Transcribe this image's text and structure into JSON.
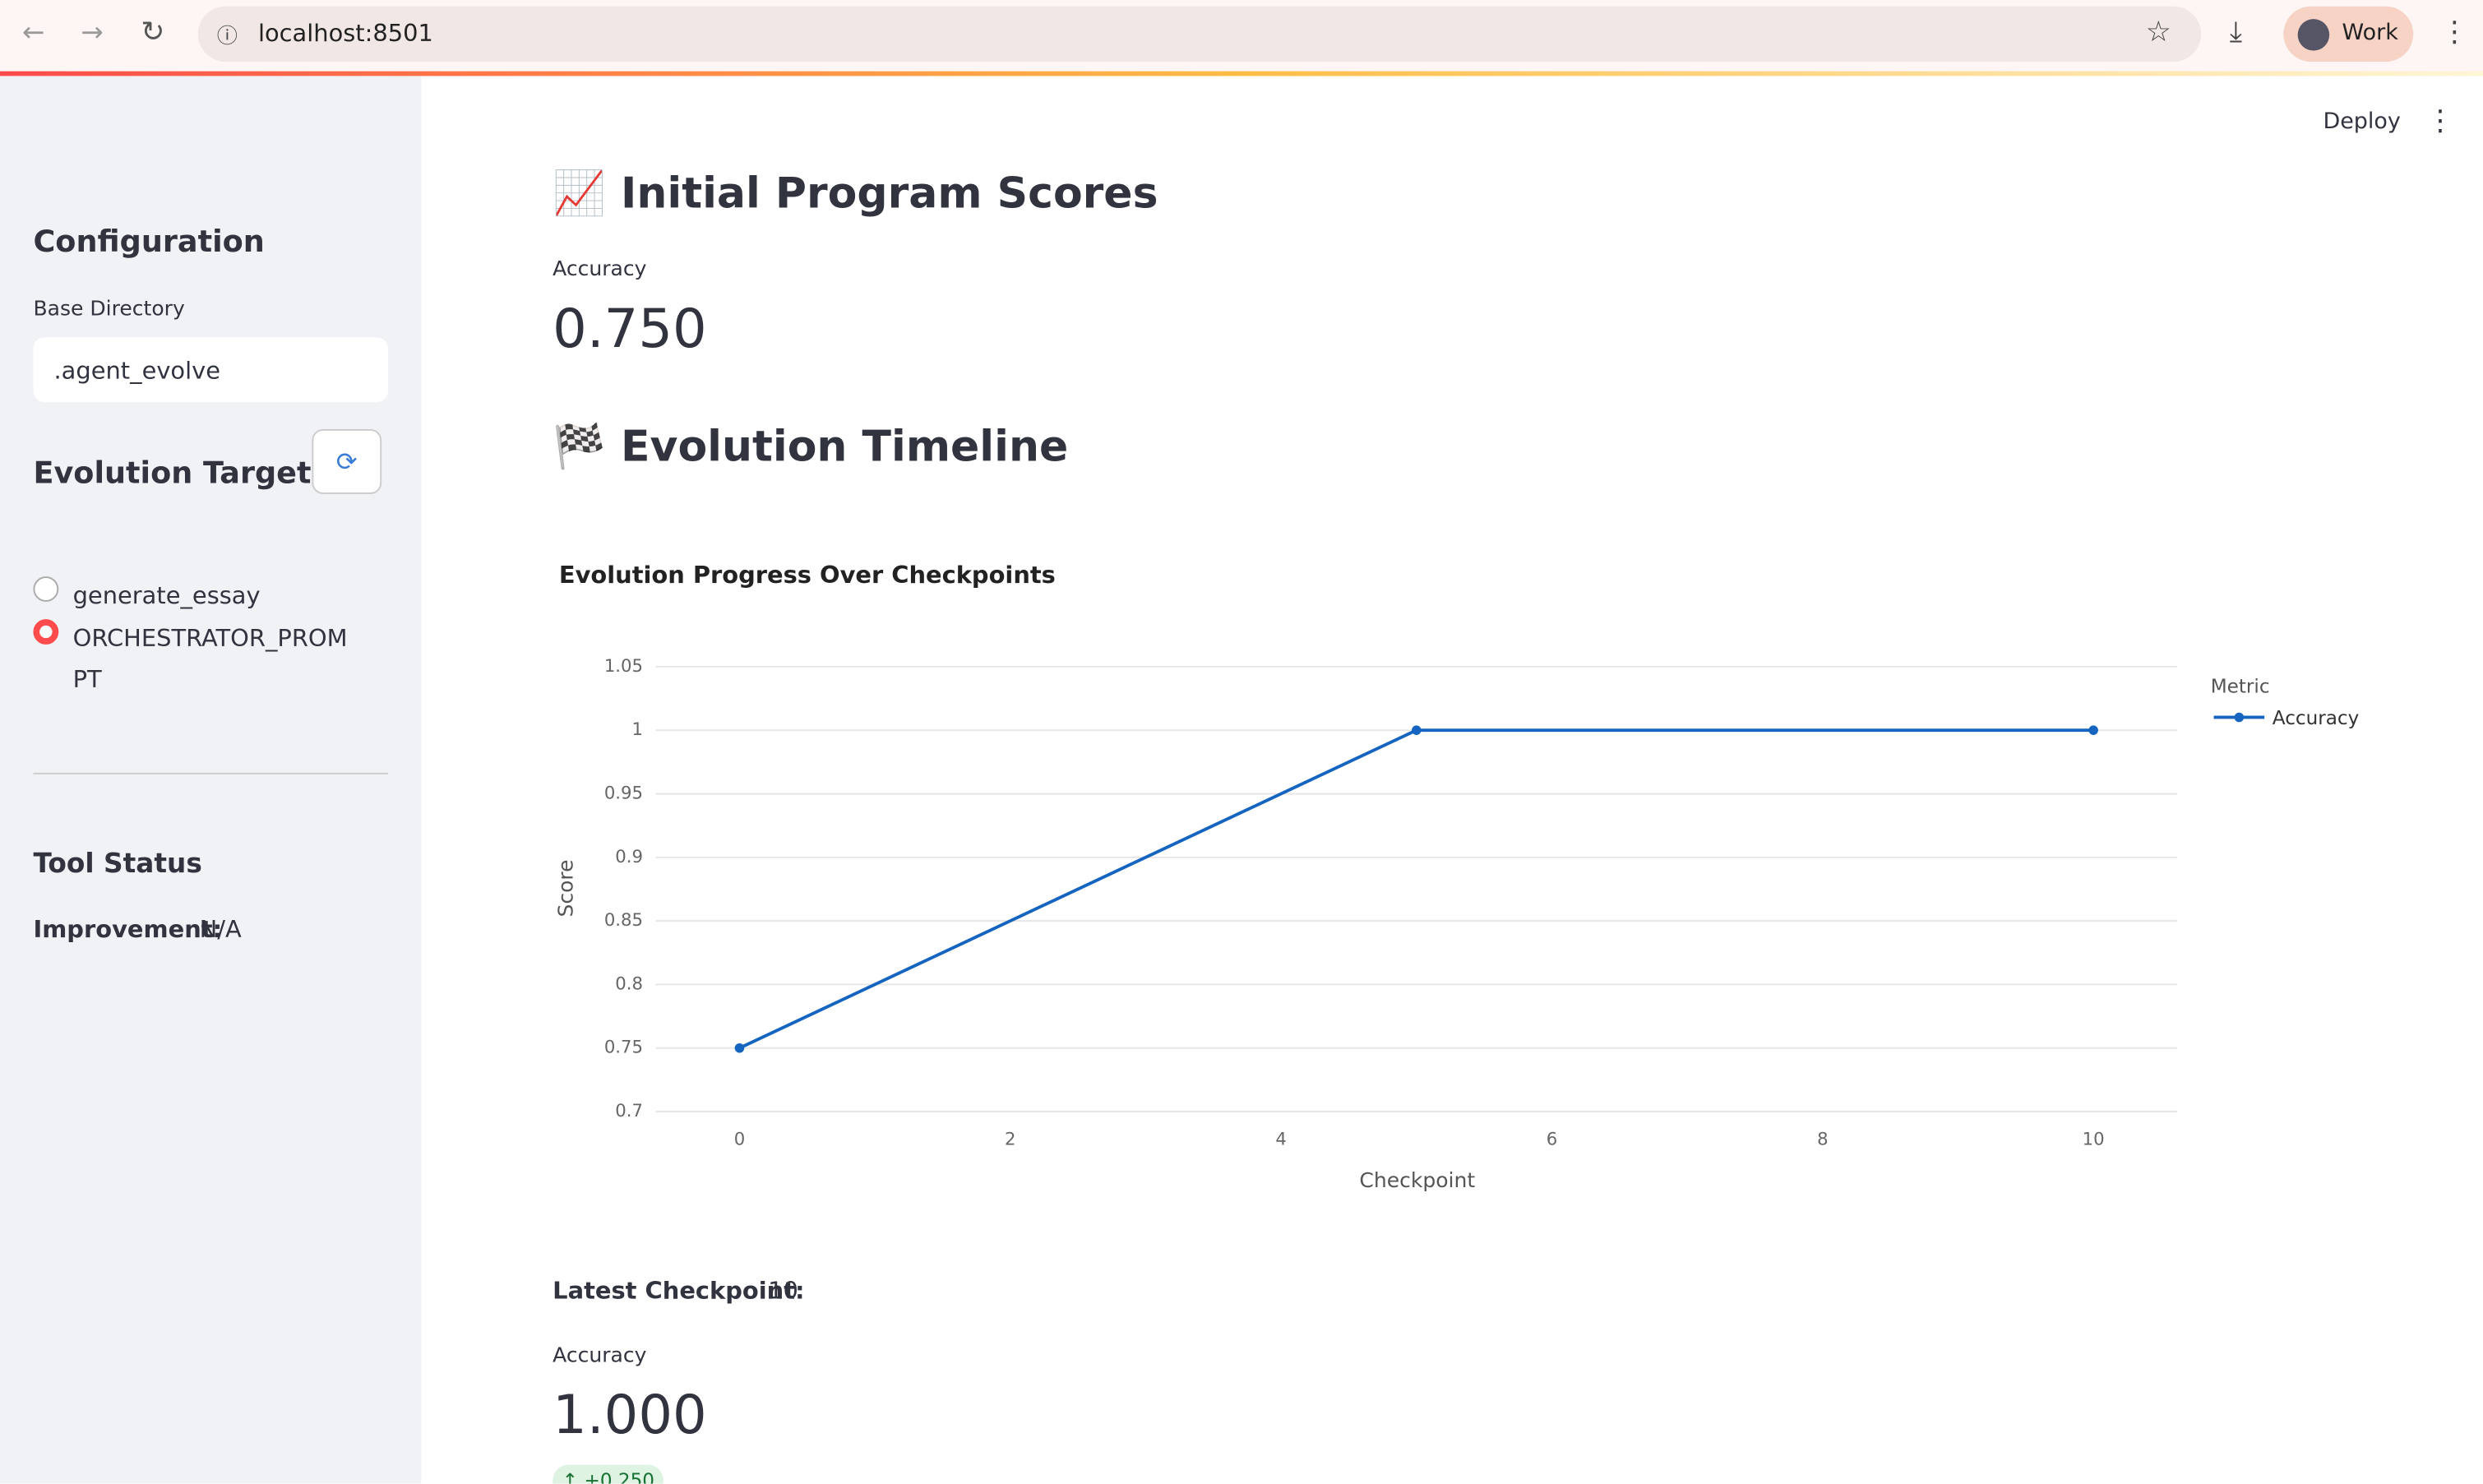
{
  "browser": {
    "url": "localhost:8501",
    "profile": "Work"
  },
  "header": {
    "deploy": "Deploy"
  },
  "sidebar": {
    "title": "Configuration",
    "base_dir_label": "Base Directory",
    "base_dir_value": ".agent_evolve",
    "targets_title": "Evolution Targets",
    "targets": [
      "generate_essay",
      "ORCHESTRATOR_PROMPT"
    ],
    "selected": 1,
    "tool_status_title": "Tool Status",
    "improvement_label": "Improvement:",
    "improvement_value": "N/A"
  },
  "main": {
    "initial_title": "📈 Initial Program Scores",
    "initial_metric_label": "Accuracy",
    "initial_metric_value": "0.750",
    "timeline_title": "🏁 Evolution Timeline",
    "latest_label": "Latest Checkpoint:",
    "latest_value": "10",
    "latest_metric_label": "Accuracy",
    "latest_metric_value": "1.000",
    "latest_delta": "+0.250"
  },
  "chart_data": {
    "type": "line",
    "title": "Evolution Progress Over Checkpoints",
    "x_label": "Checkpoint",
    "y_label": "Score",
    "legend_title": "Metric",
    "x": [
      0,
      5,
      10
    ],
    "series": [
      {
        "name": "Accuracy",
        "color": "#1565c0",
        "values": [
          0.75,
          1,
          1
        ]
      }
    ],
    "xlim": [
      -0.62,
      10.62
    ],
    "ylim": [
      0.7,
      1.05
    ],
    "xticks": [
      0,
      2,
      4,
      6,
      8,
      10
    ],
    "yticks": [
      0.7,
      0.75,
      0.8,
      0.85,
      0.9,
      0.95,
      1,
      1.05
    ],
    "grid": true
  }
}
